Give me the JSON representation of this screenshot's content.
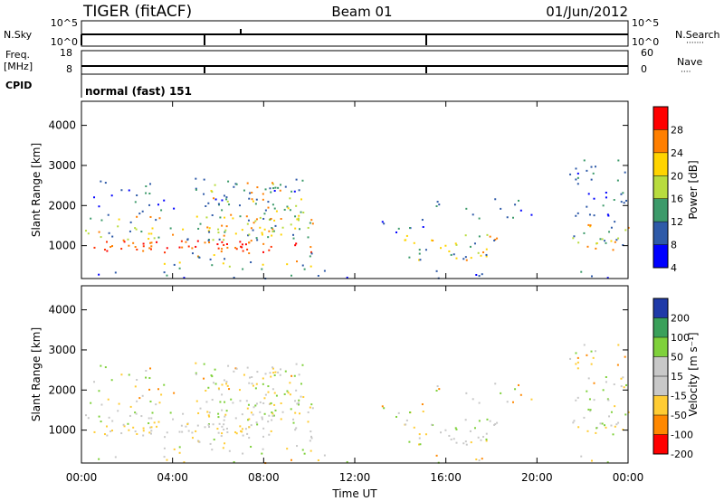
{
  "header": {
    "station": "TIGER (fitACF)",
    "beam": "Beam 01",
    "date": "01/Jun/2012"
  },
  "sky_panel": {
    "left_label": "N.Sky",
    "left_ticks": [
      "10^5",
      "10^0"
    ],
    "right_ticks": [
      "10^5",
      "10^0"
    ],
    "right_label": "N.Search",
    "right_dots": "·······"
  },
  "freq_panel": {
    "left_label_1": "Freq.",
    "left_label_2": "[MHz]",
    "left_ticks": [
      "18",
      "8"
    ],
    "right_ticks": [
      "60",
      "0"
    ],
    "right_label": "Nave",
    "right_dots": "····"
  },
  "cpid": {
    "label": "CPID",
    "value": "normal (fast) 151"
  },
  "chart_data": [
    {
      "type": "heatmap",
      "name": "Power",
      "ylabel": "Slant Range [km]",
      "ylim": [
        180,
        4600
      ],
      "yticks": [
        "1000",
        "2000",
        "3000",
        "4000"
      ],
      "colorbar": {
        "label": "Power [dB]",
        "ticks": [
          "28",
          "24",
          "20",
          "16",
          "12",
          "8",
          "4"
        ],
        "colors": [
          "#ff0000",
          "#ff7f00",
          "#ffd400",
          "#b8dc3e",
          "#3c9a6a",
          "#2e5aa8",
          "#0000ff"
        ]
      }
    },
    {
      "type": "heatmap",
      "name": "Velocity",
      "ylabel": "Slant Range [km]",
      "ylim": [
        180,
        4600
      ],
      "yticks": [
        "1000",
        "2000",
        "3000",
        "4000"
      ],
      "colorbar": {
        "label": "Velocity [m s⁻¹]",
        "ticks": [
          "200",
          "100",
          "50",
          "15",
          "-15",
          "-50",
          "-100",
          "-200"
        ],
        "colors": [
          "#1f3aa8",
          "#3aa05a",
          "#7fd13b",
          "#c8c8c8",
          "#c8c8c8",
          "#ffcc33",
          "#ff8800",
          "#ff0000"
        ]
      }
    }
  ],
  "time_axis": {
    "label": "Time UT",
    "ticks": [
      "00:00",
      "04:00",
      "08:00",
      "12:00",
      "16:00",
      "20:00",
      "00:00"
    ]
  }
}
